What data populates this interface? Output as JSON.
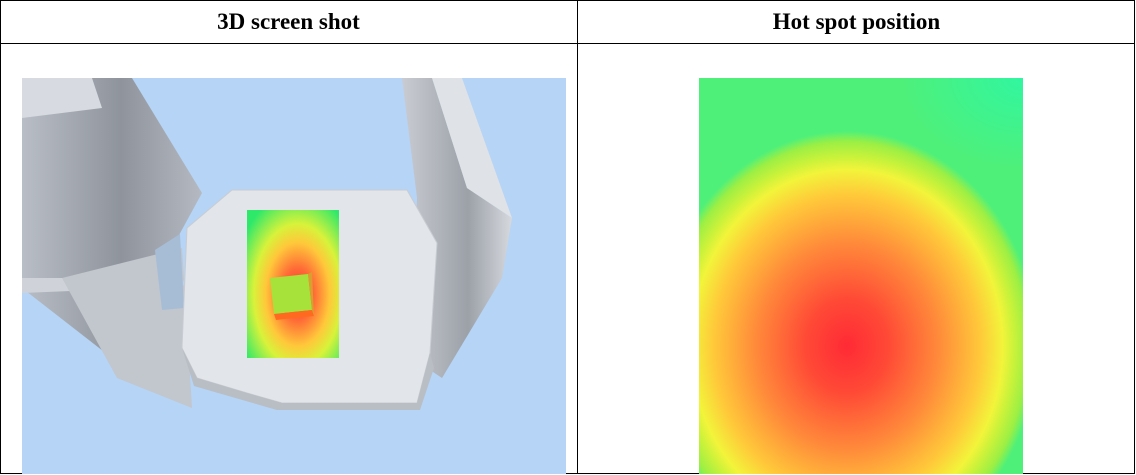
{
  "table": {
    "col1_header": "3D screen shot",
    "col2_header": "Hot spot position"
  },
  "colors": {
    "sky": "#b5d4f6",
    "hot": "#ff2a35",
    "warm": "#ffc83a",
    "cool": "#4ef07a"
  }
}
